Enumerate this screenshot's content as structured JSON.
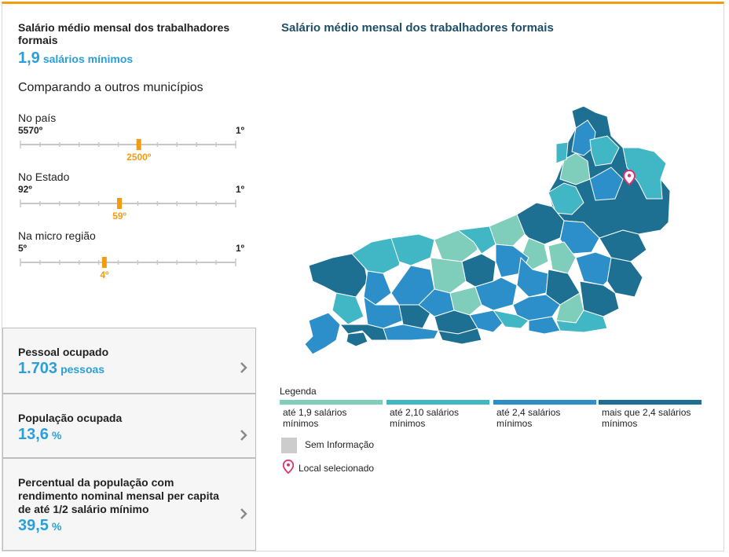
{
  "panel": {
    "title": "Salário médio mensal dos trabalhadores formais",
    "value": "1,9",
    "unit": "salários mínimos",
    "compare_heading": "Comparando a outros municípios"
  },
  "rankings": [
    {
      "label": "No país",
      "min": "5570º",
      "max": "1º",
      "position": "2500º",
      "fraction": 0.55
    },
    {
      "label": "No Estado",
      "min": "92º",
      "max": "1º",
      "position": "59º",
      "fraction": 0.46
    },
    {
      "label": "Na micro região",
      "min": "5º",
      "max": "1º",
      "position": "4º",
      "fraction": 0.39
    }
  ],
  "cards": [
    {
      "title": "Pessoal ocupado",
      "value": "1.703",
      "unit": "pessoas"
    },
    {
      "title": "População ocupada",
      "value": "13,6",
      "unit": "%"
    },
    {
      "title": "Percentual da população com rendimento nominal mensal per capita de até 1/2 salário mínimo",
      "value": "39,5",
      "unit": "%"
    }
  ],
  "map": {
    "title": "Salário médio mensal dos trabalhadores formais",
    "legend_title": "Legenda",
    "legend": [
      {
        "label": "até 1,9 salários mínimos",
        "color": "#7fcdbb"
      },
      {
        "label": "até 2,10 salários mínimos",
        "color": "#41b6c4"
      },
      {
        "label": "até 2,4 salários mínimos",
        "color": "#2c8fc9"
      },
      {
        "label": "mais que 2,4 salários mínimos",
        "color": "#1d7091"
      }
    ],
    "no_data": "Sem Informação",
    "selected": "Local selecionado",
    "accent": "#f39c12",
    "pin_color": "#e0306f"
  }
}
